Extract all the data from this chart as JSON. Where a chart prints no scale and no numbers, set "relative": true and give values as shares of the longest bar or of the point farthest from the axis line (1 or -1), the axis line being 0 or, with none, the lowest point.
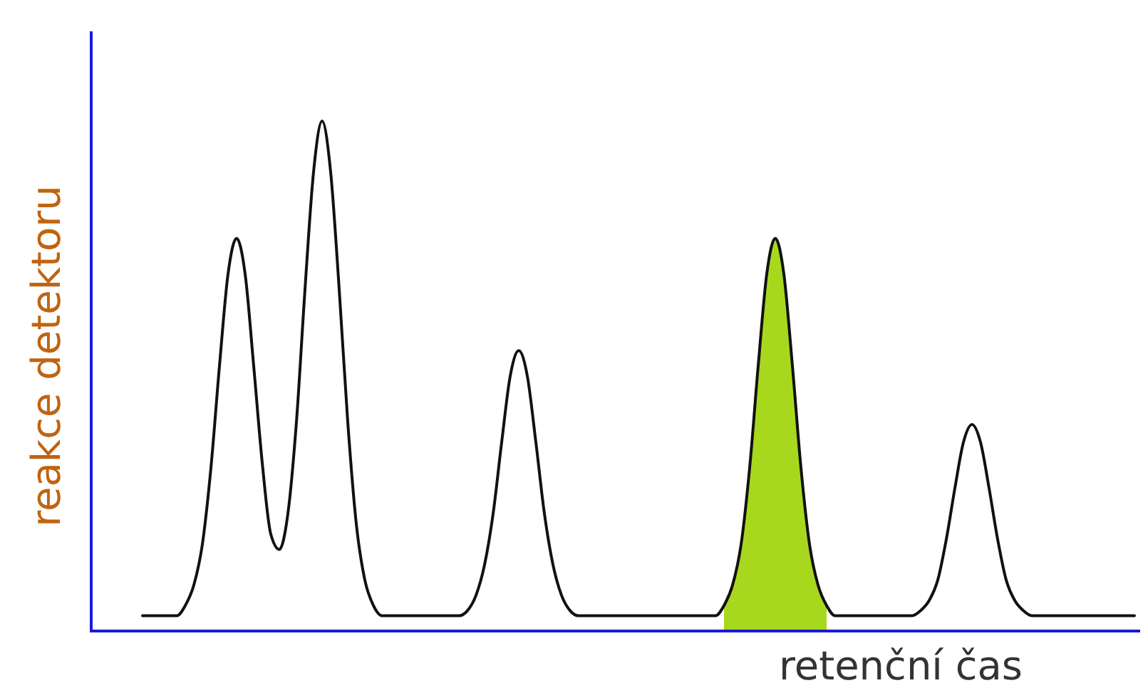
{
  "chart_data": {
    "type": "line",
    "relative": true,
    "xlabel": "retenční čas",
    "ylabel": "reakce detektoru",
    "categories": [
      null,
      null,
      null,
      null,
      null,
      null,
      null,
      null,
      null,
      null,
      null,
      null,
      null,
      null,
      null,
      null,
      null,
      null,
      null,
      null,
      null,
      null,
      null,
      null,
      null,
      null,
      null,
      null,
      null,
      null,
      null,
      null,
      null,
      null,
      null,
      null,
      null,
      null,
      null,
      null,
      null,
      null,
      null,
      null,
      null,
      null,
      null,
      null,
      null,
      null,
      null,
      null,
      null,
      null,
      null,
      null,
      null,
      null,
      null,
      null,
      null,
      null,
      null,
      null,
      null,
      null,
      null,
      null,
      null,
      null,
      null,
      null,
      null,
      null,
      null,
      null,
      null,
      null,
      null,
      null,
      null,
      null,
      null,
      null,
      null,
      null,
      null,
      null,
      null,
      null,
      null,
      null,
      null,
      null,
      null,
      null,
      null,
      null,
      null,
      null,
      null,
      null,
      null,
      null,
      null,
      null,
      null,
      null,
      null,
      null,
      null,
      null,
      null,
      null,
      null,
      null,
      null,
      null,
      null,
      null,
      null,
      null,
      null
    ],
    "series": [
      {
        "type": "area",
        "color": "#a8d81e",
        "values": [
          null,
          null,
          null,
          null,
          null,
          null,
          null,
          null,
          null,
          null,
          null,
          null,
          null,
          null,
          null,
          null,
          null,
          null,
          null,
          null,
          null,
          null,
          null,
          null,
          null,
          null,
          null,
          null,
          null,
          null,
          null,
          null,
          null,
          null,
          null,
          null,
          null,
          null,
          null,
          null,
          null,
          null,
          null,
          null,
          null,
          null,
          null,
          null,
          null,
          null,
          null,
          null,
          null,
          null,
          null,
          null,
          null,
          null,
          null,
          null,
          null,
          null,
          null,
          null,
          null,
          null,
          null,
          null,
          null,
          null,
          null,
          null,
          null,
          null,
          0.05,
          0.09,
          0.17,
          0.32,
          0.52,
          0.7,
          0.77,
          0.7,
          0.52,
          0.32,
          0.17,
          0.09,
          0.05,
          null,
          null,
          null,
          null,
          null,
          null,
          null,
          null,
          null,
          null,
          null,
          null,
          null,
          null,
          null,
          null,
          null,
          null,
          null,
          null,
          null,
          null,
          null,
          null,
          null,
          null,
          null,
          null,
          null,
          null,
          null,
          null,
          null,
          null,
          null,
          null
        ]
      },
      {
        "color": "#111111",
        "values": [
          null,
          null,
          null,
          null,
          null,
          null,
          0.03,
          0.03,
          0.03,
          0.03,
          0.03,
          0.05,
          0.09,
          0.17,
          0.32,
          0.52,
          0.7,
          0.77,
          0.7,
          0.52,
          0.33,
          0.19,
          0.16,
          0.23,
          0.41,
          0.67,
          0.9,
          1,
          0.9,
          0.67,
          0.41,
          0.21,
          0.1,
          0.05,
          0.03,
          0.03,
          0.03,
          0.03,
          0.03,
          0.03,
          0.03,
          0.03,
          0.03,
          0.03,
          0.04,
          0.07,
          0.13,
          0.23,
          0.37,
          0.5,
          0.55,
          0.5,
          0.37,
          0.23,
          0.13,
          0.07,
          0.04,
          0.03,
          0.03,
          0.03,
          0.03,
          0.03,
          0.03,
          0.03,
          0.03,
          0.03,
          0.03,
          0.03,
          0.03,
          0.03,
          0.03,
          0.03,
          0.03,
          0.03,
          0.05,
          0.09,
          0.17,
          0.32,
          0.52,
          0.7,
          0.77,
          0.7,
          0.52,
          0.32,
          0.17,
          0.09,
          0.05,
          0.03,
          0.03,
          0.03,
          0.03,
          0.03,
          0.03,
          0.03,
          0.03,
          0.03,
          0.03,
          0.04,
          0.06,
          0.1,
          0.18,
          0.28,
          0.37,
          0.405,
          0.37,
          0.28,
          0.18,
          0.1,
          0.06,
          0.04,
          0.03,
          0.03,
          0.03,
          0.03,
          0.03,
          0.03,
          0.03,
          0.03,
          0.03,
          0.03,
          0.03,
          0.03,
          0.03
        ]
      }
    ]
  }
}
